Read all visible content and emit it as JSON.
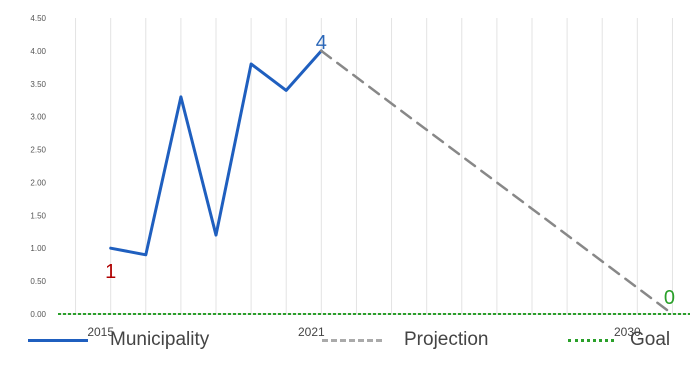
{
  "chart_data": {
    "type": "line",
    "xlim": [
      2013.5,
      2031.5
    ],
    "ylim": [
      0,
      4.5
    ],
    "x_ticks": [
      {
        "value": 2015,
        "label": "2015"
      },
      {
        "value": 2021,
        "label": "2021"
      },
      {
        "value": 2030,
        "label": "2030"
      }
    ],
    "y_ticks": [
      "0.00",
      "0.50",
      "1.00",
      "1.50",
      "2.00",
      "2.50",
      "3.00",
      "3.50",
      "4.00",
      "4.50"
    ],
    "grid": {
      "vertical": true,
      "horizontal": false
    },
    "legend_position": "bottom",
    "series": [
      {
        "name": "Municipality",
        "style": "solid",
        "color": "#1f5fbf",
        "x": [
          2015,
          2016,
          2017,
          2018,
          2019,
          2020,
          2021
        ],
        "y": [
          1.0,
          0.9,
          3.3,
          1.2,
          3.8,
          3.4,
          4.0
        ]
      },
      {
        "name": "Projection",
        "style": "dashed",
        "color": "#888888",
        "x": [
          2021,
          2031
        ],
        "y": [
          4.0,
          0.0
        ]
      },
      {
        "name": "Goal",
        "style": "dotted",
        "color": "#2aa02a",
        "x": [
          2013.5,
          2031.5
        ],
        "y": [
          0.0,
          0.0
        ]
      }
    ],
    "annotations": [
      {
        "text": "1",
        "x": 2015,
        "y": 1.0,
        "color": "#b00000"
      },
      {
        "text": "4",
        "x": 2021,
        "y": 4.0,
        "color": "#2a66b8"
      },
      {
        "text": "0",
        "x": 2031,
        "y": 0.0,
        "color": "#2aa02a"
      }
    ]
  }
}
